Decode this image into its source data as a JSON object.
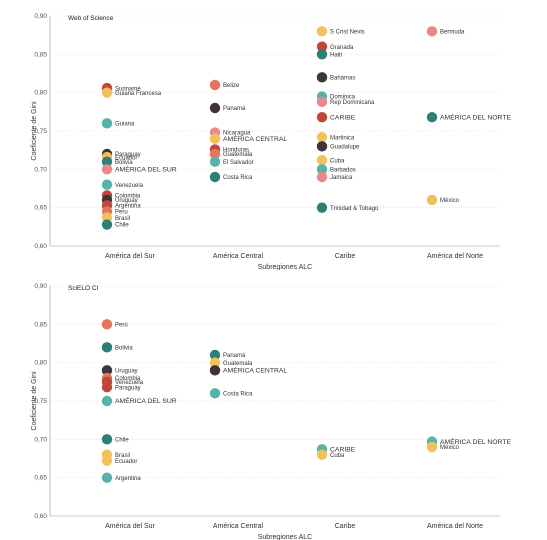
{
  "chart_data": [
    {
      "type": "scatter",
      "title": "Web of Science",
      "xlabel": "Subregiones ALC",
      "ylabel": "Coeficiente de Gini",
      "categories": [
        "América del Sur",
        "América Central",
        "Caribe",
        "América del Norte"
      ],
      "ylim": [
        0.6,
        0.9
      ],
      "yticks": [
        "0,60",
        "0,65",
        "0,70",
        "0,75",
        "0,80",
        "0,85",
        "0,90"
      ],
      "grid": true,
      "legend": "none",
      "points": [
        {
          "cat": 0,
          "y": 0.806,
          "label": "Suriname",
          "color": "#c0463a"
        },
        {
          "cat": 0,
          "y": 0.8,
          "label": "Guiana Francesa",
          "color": "#f2c15a"
        },
        {
          "cat": 0,
          "y": 0.76,
          "label": "Guiana",
          "color": "#56b3aa"
        },
        {
          "cat": 0,
          "y": 0.72,
          "label": "Paraguay",
          "color": "#3f3538"
        },
        {
          "cat": 0,
          "y": 0.716,
          "label": "Ecuador",
          "color": "#f2c15a"
        },
        {
          "cat": 0,
          "y": 0.71,
          "label": "Bolivia",
          "color": "#2e7f75"
        },
        {
          "cat": 0,
          "y": 0.7,
          "label": "AMÉRICA DEL SUR",
          "color": "#e9898a",
          "aggregate": true
        },
        {
          "cat": 0,
          "y": 0.68,
          "label": "Venezuela",
          "color": "#56b3aa"
        },
        {
          "cat": 0,
          "y": 0.666,
          "label": "Colombia",
          "color": "#c0463a"
        },
        {
          "cat": 0,
          "y": 0.66,
          "label": "Uruguay",
          "color": "#3f3538"
        },
        {
          "cat": 0,
          "y": 0.653,
          "label": "Argentina",
          "color": "#c0463a"
        },
        {
          "cat": 0,
          "y": 0.645,
          "label": "Peru",
          "color": "#e5765c"
        },
        {
          "cat": 0,
          "y": 0.637,
          "label": "Brasil",
          "color": "#f2c15a"
        },
        {
          "cat": 0,
          "y": 0.628,
          "label": "Chile",
          "color": "#2e7f75"
        },
        {
          "cat": 1,
          "y": 0.81,
          "label": "Belize",
          "color": "#e5765c"
        },
        {
          "cat": 1,
          "y": 0.78,
          "label": "Panamá",
          "color": "#3f3538"
        },
        {
          "cat": 1,
          "y": 0.748,
          "label": "Nicaragua",
          "color": "#e9898a"
        },
        {
          "cat": 1,
          "y": 0.74,
          "label": "AMÉRICA CENTRAL",
          "color": "#f2c15a",
          "aggregate": true
        },
        {
          "cat": 1,
          "y": 0.726,
          "label": "Honduras",
          "color": "#c0463a"
        },
        {
          "cat": 1,
          "y": 0.72,
          "label": "Guatemala",
          "color": "#e5765c"
        },
        {
          "cat": 1,
          "y": 0.71,
          "label": "El Salvador",
          "color": "#56b3aa"
        },
        {
          "cat": 1,
          "y": 0.69,
          "label": "Costa Rica",
          "color": "#2e7f75"
        },
        {
          "cat": 2,
          "y": 0.88,
          "label": "S Crist Nevis",
          "color": "#f2c15a"
        },
        {
          "cat": 2,
          "y": 0.86,
          "label": "Granada",
          "color": "#c0463a"
        },
        {
          "cat": 2,
          "y": 0.85,
          "label": "Haiti",
          "color": "#2e7f75"
        },
        {
          "cat": 2,
          "y": 0.82,
          "label": "Bahamas",
          "color": "#3f3538"
        },
        {
          "cat": 2,
          "y": 0.795,
          "label": "Dominica",
          "color": "#56b3aa"
        },
        {
          "cat": 2,
          "y": 0.788,
          "label": "Rep Dominicana",
          "color": "#e9898a"
        },
        {
          "cat": 2,
          "y": 0.768,
          "label": "CARIBE",
          "color": "#c0463a",
          "aggregate": true
        },
        {
          "cat": 2,
          "y": 0.742,
          "label": "Martinica",
          "color": "#f2c15a"
        },
        {
          "cat": 2,
          "y": 0.73,
          "label": "Guadalupe",
          "color": "#3f3538"
        },
        {
          "cat": 2,
          "y": 0.712,
          "label": "Cuba",
          "color": "#f2c15a"
        },
        {
          "cat": 2,
          "y": 0.7,
          "label": "Barbados",
          "color": "#56b3aa"
        },
        {
          "cat": 2,
          "y": 0.69,
          "label": "Jamaica",
          "color": "#e9898a"
        },
        {
          "cat": 2,
          "y": 0.65,
          "label": "Trinidad & Tobago",
          "color": "#2e7f75"
        },
        {
          "cat": 3,
          "y": 0.88,
          "label": "Bermuda",
          "color": "#e9898a"
        },
        {
          "cat": 3,
          "y": 0.768,
          "label": "AMÉRICA DEL NORTE",
          "color": "#2e7f75",
          "aggregate": true
        },
        {
          "cat": 3,
          "y": 0.66,
          "label": "México",
          "color": "#f2c15a"
        }
      ]
    },
    {
      "type": "scatter",
      "title": "SciELO CI",
      "xlabel": "Subregiones ALC",
      "ylabel": "Coeficiente de Gini",
      "categories": [
        "América del Sur",
        "América Central",
        "Caribe",
        "América del Norte"
      ],
      "ylim": [
        0.6,
        0.9
      ],
      "yticks": [
        "0,60",
        "0,65",
        "0,70",
        "0,75",
        "0,80",
        "0,85",
        "0,90"
      ],
      "grid": true,
      "legend": "none",
      "points": [
        {
          "cat": 0,
          "y": 0.85,
          "label": "Perú",
          "color": "#e5765c"
        },
        {
          "cat": 0,
          "y": 0.82,
          "label": "Bolivia",
          "color": "#2e7f75"
        },
        {
          "cat": 0,
          "y": 0.79,
          "label": "Uruguay",
          "color": "#3f3538"
        },
        {
          "cat": 0,
          "y": 0.78,
          "label": "Colombia",
          "color": "#e5765c"
        },
        {
          "cat": 0,
          "y": 0.775,
          "label": "Venezuela",
          "color": "#c0463a"
        },
        {
          "cat": 0,
          "y": 0.768,
          "label": "Paraguay",
          "color": "#c0463a"
        },
        {
          "cat": 0,
          "y": 0.75,
          "label": "AMÉRICA DEL SUR",
          "color": "#56b3aa",
          "aggregate": true
        },
        {
          "cat": 0,
          "y": 0.7,
          "label": "Chile",
          "color": "#2e7f75"
        },
        {
          "cat": 0,
          "y": 0.68,
          "label": "Brasil",
          "color": "#f2c15a"
        },
        {
          "cat": 0,
          "y": 0.672,
          "label": "Ecuador",
          "color": "#f2c15a"
        },
        {
          "cat": 0,
          "y": 0.65,
          "label": "Argentina",
          "color": "#56b3aa"
        },
        {
          "cat": 1,
          "y": 0.81,
          "label": "Panamá",
          "color": "#2e7f75"
        },
        {
          "cat": 1,
          "y": 0.8,
          "label": "Guatemala",
          "color": "#f2c15a"
        },
        {
          "cat": 1,
          "y": 0.79,
          "label": "AMÉRICA CENTRAL",
          "color": "#3f3538",
          "aggregate": true
        },
        {
          "cat": 1,
          "y": 0.76,
          "label": "Costa Rica",
          "color": "#56b3aa"
        },
        {
          "cat": 2,
          "y": 0.687,
          "label": "CARIBE",
          "color": "#56b3aa",
          "aggregate": true
        },
        {
          "cat": 2,
          "y": 0.68,
          "label": "Cuba",
          "color": "#f2c15a"
        },
        {
          "cat": 3,
          "y": 0.697,
          "label": "AMÉRICA DEL NORTE",
          "color": "#56b3aa",
          "aggregate": true
        },
        {
          "cat": 3,
          "y": 0.69,
          "label": "México",
          "color": "#f2c15a"
        }
      ]
    }
  ]
}
